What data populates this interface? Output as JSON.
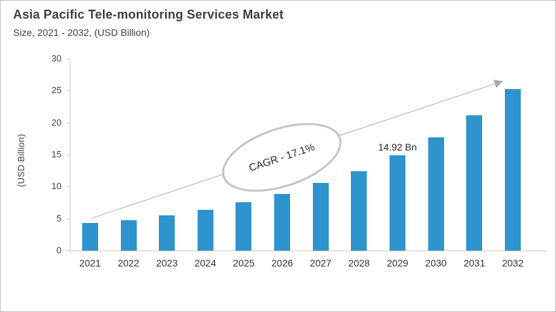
{
  "chart_data": {
    "type": "bar",
    "title": "Asia Pacific Tele-monitoring Services Market",
    "subtitle": "Size, 2021 - 2032, (USD Billion)",
    "categories": [
      "2021",
      "2022",
      "2023",
      "2024",
      "2025",
      "2026",
      "2027",
      "2028",
      "2029",
      "2030",
      "2031",
      "2032"
    ],
    "values": [
      4.3,
      4.8,
      5.5,
      6.4,
      7.6,
      8.9,
      10.6,
      12.4,
      14.92,
      17.7,
      21.1,
      25.3
    ],
    "xlabel": "",
    "ylabel": "(USD Billion)",
    "ylim": [
      0,
      30
    ],
    "yticks": [
      0,
      5,
      10,
      15,
      20,
      25,
      30
    ],
    "grid": false,
    "legend": false,
    "bar_color": "#2e94ce",
    "axis_color": "#c9c9c9",
    "trend_line_color": "#c1c1c1",
    "arrowhead_color": "#a9a9a9",
    "annotations": {
      "cagr_label": "CAGR - 17.1%",
      "point_label": "14.92 Bn",
      "point_label_category": "2029",
      "point_label_index": 8,
      "trend_arrow": true
    }
  }
}
